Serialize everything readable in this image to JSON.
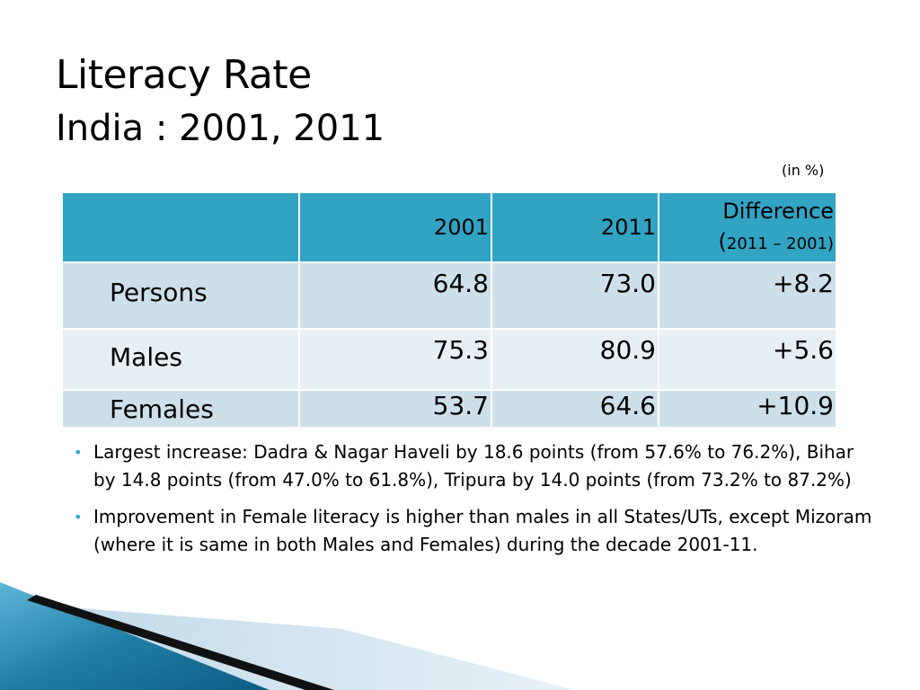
{
  "slide": {
    "title": "Literacy Rate",
    "subtitle": "India : 2001, 2011",
    "unit_note": "(in %)"
  },
  "table": {
    "headers": {
      "blank": "",
      "year1": "2001",
      "year2": "2011",
      "difference": "Difference",
      "difference_sub_open": "(",
      "difference_sub": "2011 – 2001)"
    },
    "rows": [
      {
        "label": "Persons",
        "y2001": "64.8",
        "y2011": "73.0",
        "diff": "+8.2"
      },
      {
        "label": "Males",
        "y2001": "75.3",
        "y2011": "80.9",
        "diff": "+5.6"
      },
      {
        "label": "Females",
        "y2001": "53.7",
        "y2011": "64.6",
        "diff": "+10.9"
      }
    ]
  },
  "notes": [
    "Largest increase: Dadra & Nagar Haveli  by 18.6 points (from 57.6% to 76.2%), Bihar by 14.8 points (from 47.0% to 61.8%), Tripura by 14.0 points (from 73.2% to 87.2%)",
    "Improvement in Female literacy is higher than males in all States/UTs, except Mizoram (where it is same in both Males and Females) during the decade 2001-11."
  ],
  "colors": {
    "header_fill": "#31a4c4",
    "row_dark": "#cde0ea",
    "row_light": "#e7eef4",
    "bullet": "#31a4c4",
    "deco_blue": "#1f7ea6",
    "deco_light": "#cfe3ef"
  }
}
